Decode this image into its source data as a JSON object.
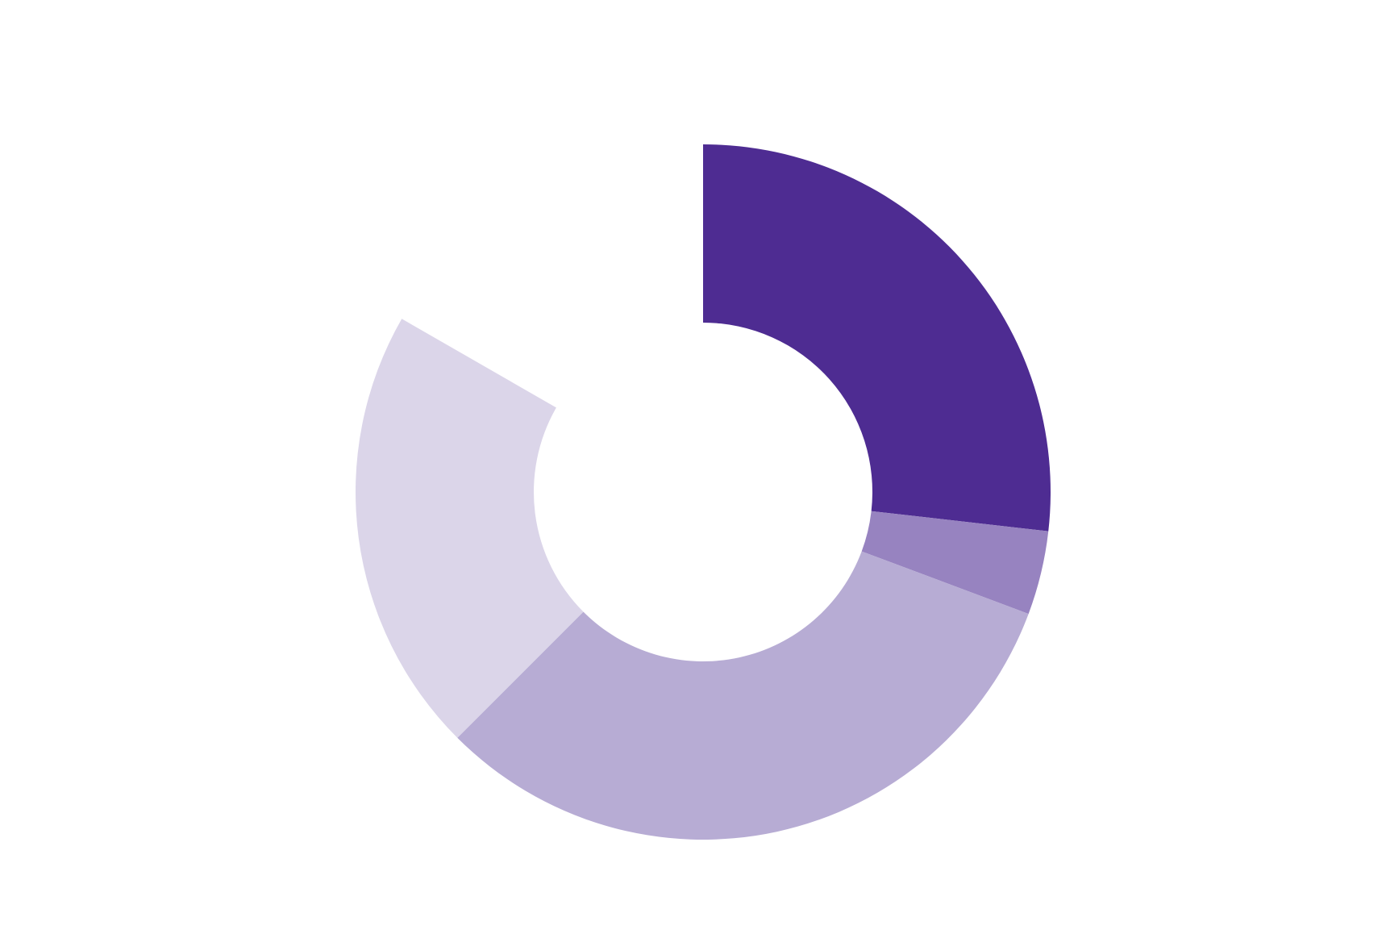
{
  "chart_data": {
    "type": "pie",
    "variant": "donut",
    "start_angle_deg": 0,
    "direction": "clockwise",
    "gap_at_end": true,
    "slices": [
      {
        "value": 26.8,
        "color": "#4e2c92"
      },
      {
        "value": 3.9,
        "color": "#9783c0"
      },
      {
        "value": 31.8,
        "color": "#b7acd4"
      },
      {
        "value": 20.8,
        "color": "#dbd5e9"
      }
    ],
    "total": 100,
    "grid": false,
    "legend": "none"
  }
}
